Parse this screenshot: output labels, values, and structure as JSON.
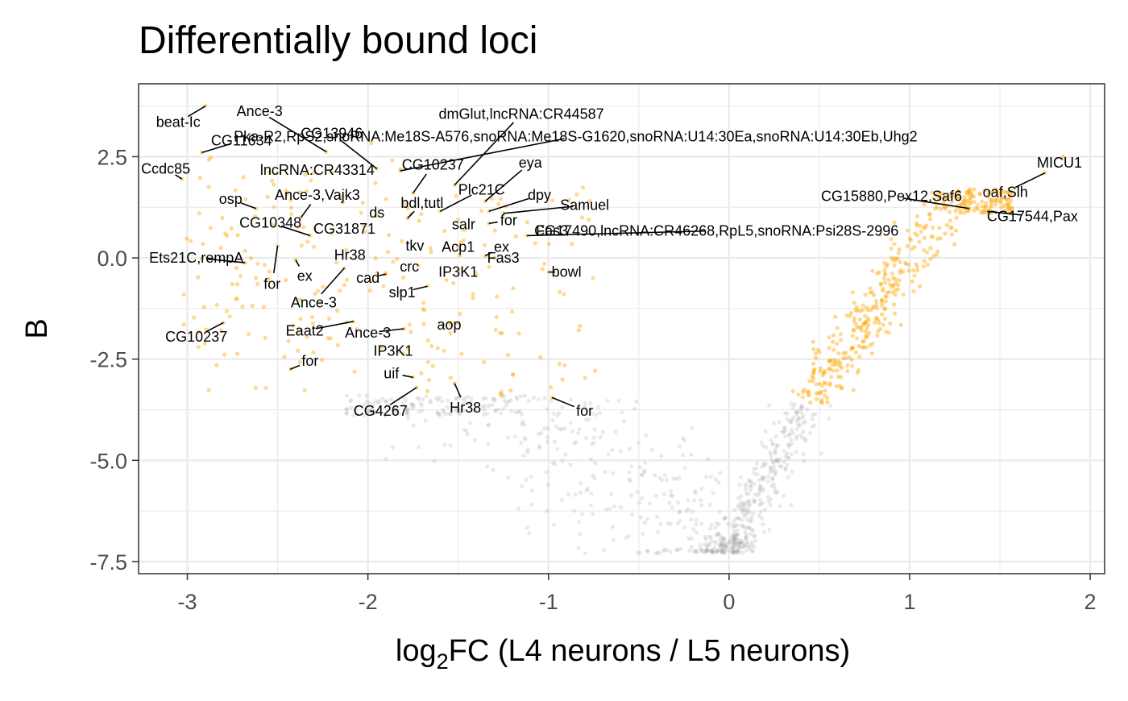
{
  "chart_data": {
    "type": "scatter",
    "title": "Differentially bound loci",
    "xlabel_main": "log",
    "xlabel_sub": "2",
    "xlabel_rest": "FC (L4 neurons / L5 neurons)",
    "ylabel": "B",
    "xlim": [
      -3.27,
      2.08
    ],
    "ylim": [
      -7.8,
      4.3
    ],
    "x_ticks": [
      -3,
      -2,
      -1,
      0,
      1,
      2
    ],
    "x_tick_labels": [
      "-3",
      "-2",
      "-1",
      "0",
      "1",
      "2"
    ],
    "y_ticks": [
      2.5,
      0,
      -2.5,
      -5,
      -7.5
    ],
    "y_tick_labels": [
      "2.5",
      "0.0",
      "-2.5",
      "-5.0",
      "-7.5"
    ],
    "grid": true,
    "legend": "none",
    "colors": {
      "significant": "#FFA500",
      "nonsignificant": "#9e9e9e",
      "panel_border": "#333333",
      "grid": "#ebebeb",
      "label_line": "#000000"
    },
    "labeled_points": [
      {
        "x": -2.9,
        "y": 3.75,
        "label": "beat-Ic",
        "lx": -3.05,
        "ly": 3.35
      },
      {
        "x": -2.92,
        "y": 2.6,
        "label": "CG11634",
        "lx": -2.7,
        "ly": 2.9
      },
      {
        "x": -3.03,
        "y": 1.95,
        "label": "Ccdc85",
        "lx": -3.12,
        "ly": 2.2
      },
      {
        "x": -2.23,
        "y": 2.62,
        "label": "Ance-3",
        "lx": -2.6,
        "ly": 3.62
      },
      {
        "x": -1.95,
        "y": 2.2,
        "label": "CG13946",
        "lx": -2.2,
        "ly": 3.08
      },
      {
        "x": -2.2,
        "y": 2.1,
        "label": "lncRNA:CR43314",
        "lx": -2.28,
        "ly": 2.17
      },
      {
        "x": -2.62,
        "y": 1.22,
        "label": "osp",
        "lx": -2.76,
        "ly": 1.45
      },
      {
        "x": -2.37,
        "y": 1.0,
        "label": "Ance-3,Vajk3",
        "lx": -2.28,
        "ly": 1.55
      },
      {
        "x": -2.32,
        "y": 0.55,
        "label": "CG10348",
        "lx": -2.54,
        "ly": 0.87
      },
      {
        "x": -2.2,
        "y": 0.6,
        "label": "CG31871",
        "lx": -2.13,
        "ly": 0.72
      },
      {
        "x": -1.9,
        "y": 1.45,
        "label": "ds",
        "lx": -1.95,
        "ly": 1.12
      },
      {
        "x": -2.68,
        "y": -0.12,
        "label": "Ets21C,rempA",
        "lx": -2.95,
        "ly": 0.0
      },
      {
        "x": -2.5,
        "y": 0.3,
        "label": "for",
        "lx": -2.53,
        "ly": -0.65
      },
      {
        "x": -2.4,
        "y": -0.05,
        "label": "ex",
        "lx": -2.35,
        "ly": -0.45
      },
      {
        "x": -2.12,
        "y": 0.2,
        "label": "Hr38",
        "lx": -2.1,
        "ly": 0.07
      },
      {
        "x": -2.13,
        "y": -0.25,
        "label": "Ance-3",
        "lx": -2.3,
        "ly": -1.1
      },
      {
        "x": -1.75,
        "y": 1.6,
        "label": "CG10237",
        "lx": -1.64,
        "ly": 2.3
      },
      {
        "x": -1.82,
        "y": 2.15,
        "label": "Pka-R2,RpS2,snoRNA:Me18S-A576,snoRNA:Me18S-G1620,snoRNA:U14:30Ea,snoRNA:U14:30Eb,Uhg2",
        "lx": -0.85,
        "ly": 3.0
      },
      {
        "x": -1.52,
        "y": 1.8,
        "label": "dmGlut,lncRNA:CR44587",
        "lx": -1.15,
        "ly": 3.55
      },
      {
        "x": -1.78,
        "y": 0.98,
        "label": "bdl,tutl",
        "lx": -1.7,
        "ly": 1.35
      },
      {
        "x": -1.6,
        "y": 1.15,
        "label": "Plc21C",
        "lx": -1.37,
        "ly": 1.68
      },
      {
        "x": -1.35,
        "y": 1.4,
        "label": "eya",
        "lx": -1.1,
        "ly": 2.35
      },
      {
        "x": -1.33,
        "y": 1.15,
        "label": "dpy",
        "lx": -1.05,
        "ly": 1.55
      },
      {
        "x": -1.25,
        "y": 1.1,
        "label": "Samuel",
        "lx": -0.8,
        "ly": 1.3
      },
      {
        "x": -1.5,
        "y": 0.95,
        "label": "salr",
        "lx": -1.47,
        "ly": 0.83
      },
      {
        "x": -1.33,
        "y": 0.85,
        "label": "for",
        "lx": -1.22,
        "ly": 0.93
      },
      {
        "x": -1.65,
        "y": 0.15,
        "label": "tkv",
        "lx": -1.74,
        "ly": 0.3
      },
      {
        "x": -1.5,
        "y": 0.25,
        "label": "Acp1",
        "lx": -1.5,
        "ly": 0.27
      },
      {
        "x": -1.35,
        "y": 0.05,
        "label": "ex",
        "lx": -1.26,
        "ly": 0.27
      },
      {
        "x": -1.12,
        "y": 0.55,
        "label": "CG17490,lncRNA:CR46268,RpL5,snoRNA:Psi28S-2996",
        "lx": -0.07,
        "ly": 0.67
      },
      {
        "x": -1.05,
        "y": 0.6,
        "label": "Fas3",
        "lx": -0.98,
        "ly": 0.67
      },
      {
        "x": -1.3,
        "y": 0.0,
        "label": "Fas3",
        "lx": -1.25,
        "ly": 0.0
      },
      {
        "x": -1.72,
        "y": -0.2,
        "label": "crc",
        "lx": -1.77,
        "ly": -0.22
      },
      {
        "x": -1.5,
        "y": -0.3,
        "label": "IP3K1",
        "lx": -1.5,
        "ly": -0.35
      },
      {
        "x": -1.0,
        "y": -0.35,
        "label": "bowl",
        "lx": -0.9,
        "ly": -0.35
      },
      {
        "x": -1.9,
        "y": -0.4,
        "label": "cad",
        "lx": -2.0,
        "ly": -0.5
      },
      {
        "x": -1.67,
        "y": -0.7,
        "label": "slp1",
        "lx": -1.81,
        "ly": -0.85
      },
      {
        "x": -2.08,
        "y": -1.57,
        "label": "Eaat2",
        "lx": -2.35,
        "ly": -1.8
      },
      {
        "x": -1.8,
        "y": -1.75,
        "label": "Ance-3",
        "lx": -2.0,
        "ly": -1.85
      },
      {
        "x": -1.55,
        "y": -1.6,
        "label": "aop",
        "lx": -1.55,
        "ly": -1.65
      },
      {
        "x": -1.78,
        "y": -2.25,
        "label": "IP3K1",
        "lx": -1.86,
        "ly": -2.3
      },
      {
        "x": -2.8,
        "y": -1.6,
        "label": "CG10237",
        "lx": -2.95,
        "ly": -1.95
      },
      {
        "x": -2.43,
        "y": -2.75,
        "label": "for",
        "lx": -2.32,
        "ly": -2.55
      },
      {
        "x": -1.75,
        "y": -2.95,
        "label": "uif",
        "lx": -1.87,
        "ly": -2.85
      },
      {
        "x": -1.73,
        "y": -3.2,
        "label": "CG4267",
        "lx": -1.93,
        "ly": -3.78
      },
      {
        "x": -1.52,
        "y": -3.1,
        "label": "Hr38",
        "lx": -1.46,
        "ly": -3.7
      },
      {
        "x": -0.98,
        "y": -3.45,
        "label": "for",
        "lx": -0.8,
        "ly": -3.78
      },
      {
        "x": 1.85,
        "y": 2.5,
        "label": "MICU1",
        "lx": 1.83,
        "ly": 2.35
      },
      {
        "x": 1.75,
        "y": 2.1,
        "label": "oaf,Slh",
        "lx": 1.53,
        "ly": 1.62
      },
      {
        "x": 1.33,
        "y": 1.22,
        "label": "CG15880,Pex12,Saf6",
        "lx": 0.9,
        "ly": 1.52
      },
      {
        "x": 1.43,
        "y": 1.15,
        "label": "CG17544,Pax",
        "lx": 1.68,
        "ly": 1.03
      }
    ]
  }
}
